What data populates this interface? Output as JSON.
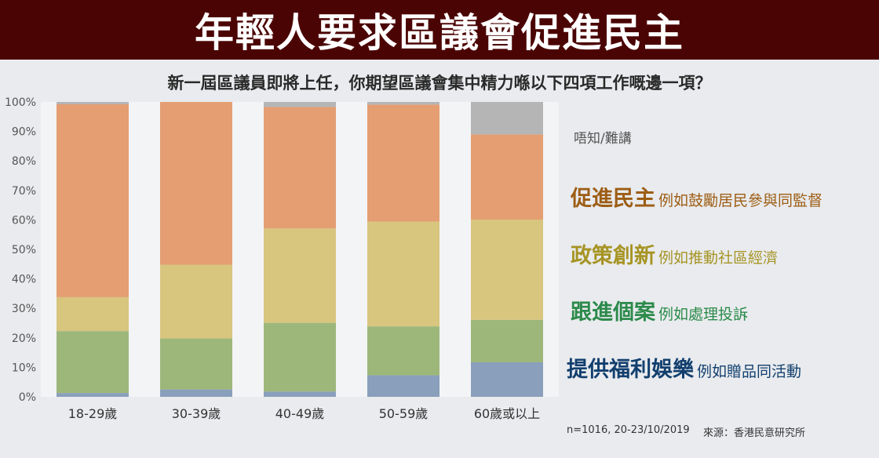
{
  "header": {
    "title": "年輕人要求區議會促進民主",
    "question": "新一屆區議員即將上任，你期望區議會集中精力喺以下四項工作嘅邊一項？"
  },
  "chart_data": {
    "type": "bar",
    "stacked": true,
    "categories": [
      "18-29歲",
      "30-39歲",
      "40-49歲",
      "50-59歲",
      "60歲或以上"
    ],
    "y_ticks": [
      "0%",
      "10%",
      "20%",
      "30%",
      "40%",
      "50%",
      "60%",
      "70%",
      "80%",
      "90%",
      "100%"
    ],
    "ylim": [
      0,
      100
    ],
    "grid": false,
    "series": [
      {
        "name": "提供福利娛樂",
        "example": "例如贈品同活動",
        "color": "#899fbb",
        "legend_color": "#123f6e",
        "values": [
          1.3,
          2.5,
          1.8,
          7.3,
          11.7
        ]
      },
      {
        "name": "跟進個案",
        "example": "例如處理投訴",
        "color": "#9db77b",
        "legend_color": "#2c8a4b",
        "values": [
          21.0,
          17.3,
          23.3,
          16.6,
          14.4
        ]
      },
      {
        "name": "政策創新",
        "example": "例如推動社區經濟",
        "color": "#d8c57e",
        "legend_color": "#a69424",
        "values": [
          11.5,
          25.0,
          32.0,
          35.5,
          34.0
        ]
      },
      {
        "name": "促進民主",
        "example": "例如鼓勵居民參與同監督",
        "color": "#e49e72",
        "legend_color": "#9d5d14",
        "values": [
          65.4,
          55.2,
          41.2,
          39.7,
          28.9
        ]
      },
      {
        "name": "唔知/難講",
        "example": "",
        "color": "#b5b5b5",
        "legend_color": "#555555",
        "values": [
          0.8,
          0.0,
          1.7,
          0.9,
          11.0
        ]
      }
    ]
  },
  "footer": {
    "note": "n=1016, 20-23/10/2019",
    "source": "來源：香港民意研究所"
  }
}
